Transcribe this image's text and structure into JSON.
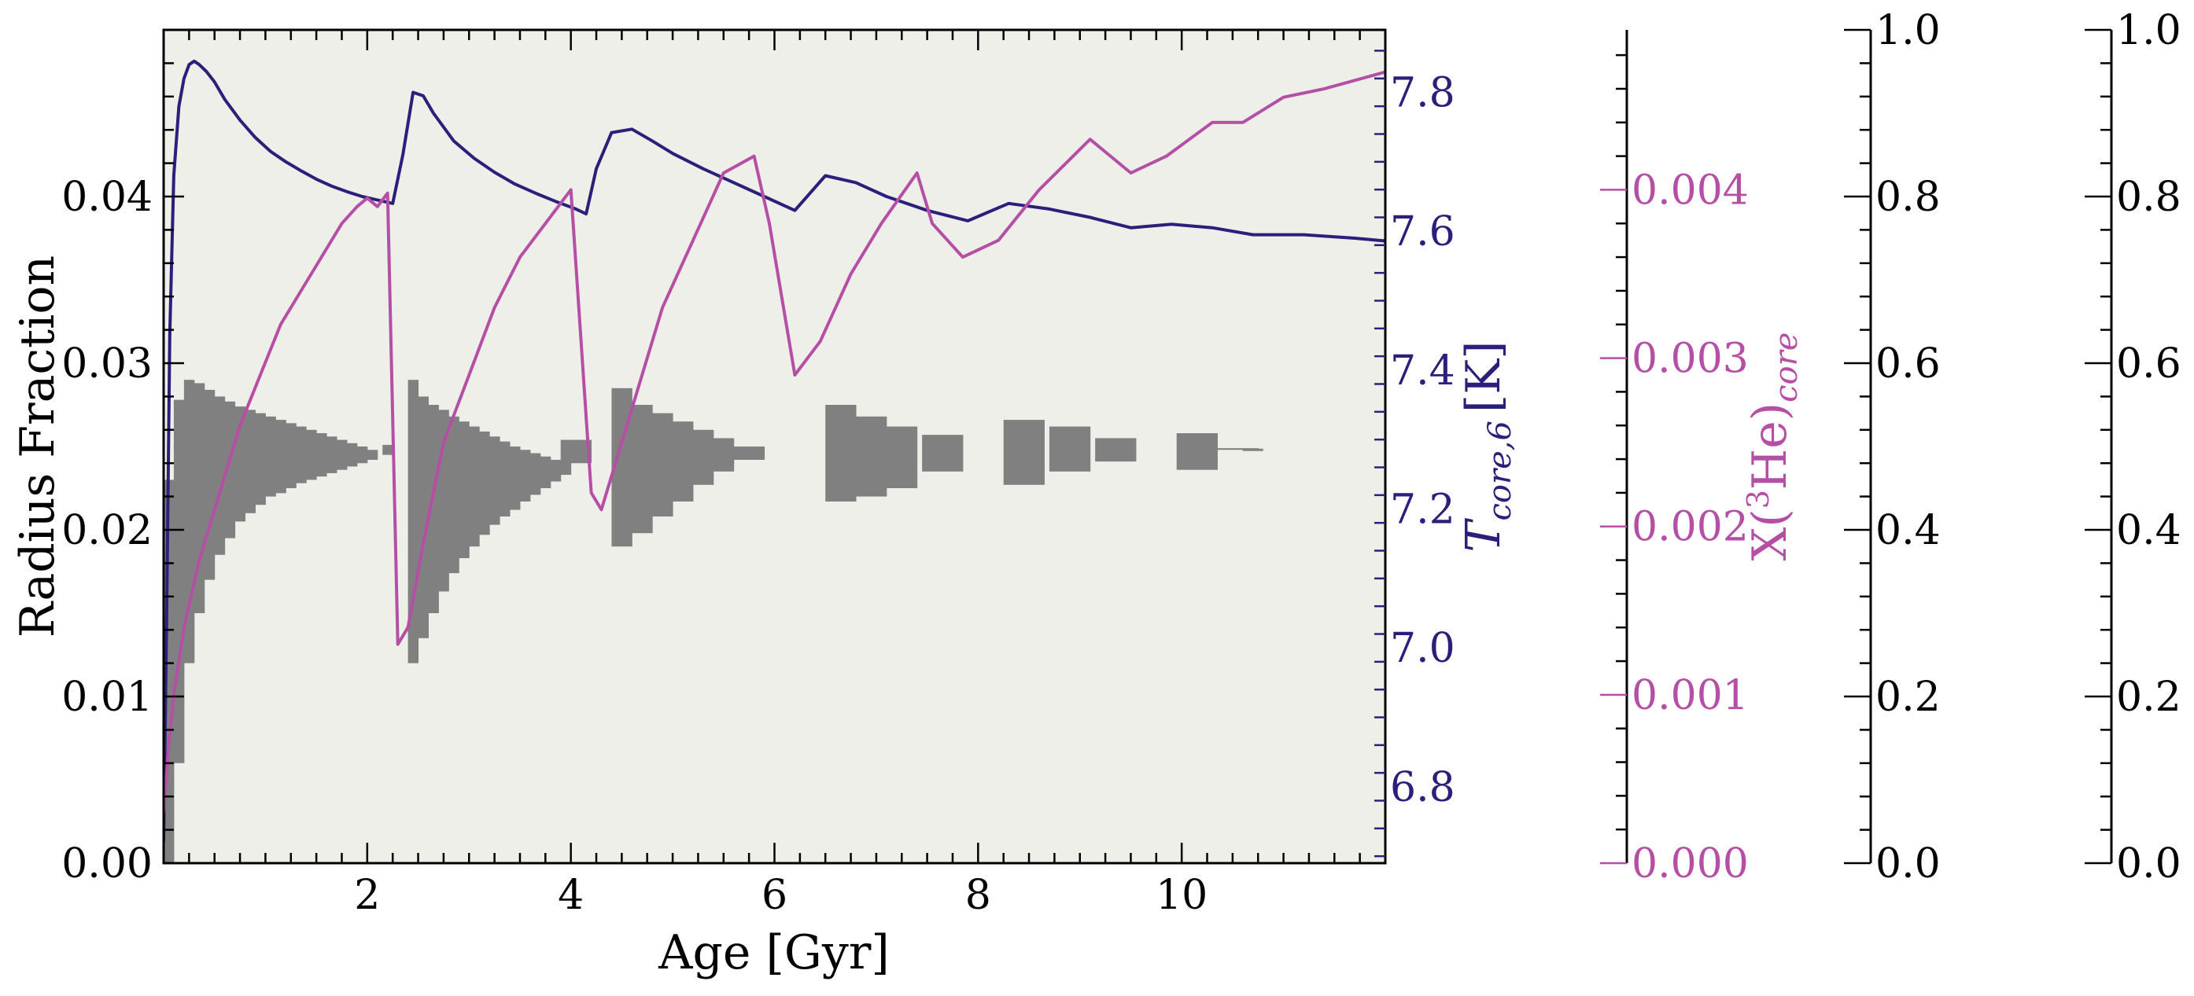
{
  "chart_data": {
    "type": "line",
    "xlabel": "Age [Gyr]",
    "ylabel": "Radius Fraction",
    "xlim": [
      0,
      12
    ],
    "ylim": [
      0,
      0.05
    ],
    "x_ticks": [
      "2",
      "4",
      "6",
      "8",
      "10"
    ],
    "y_ticks": [
      "0.00",
      "0.01",
      "0.02",
      "0.03",
      "0.04"
    ],
    "grid": false,
    "plot_background": "#efefea",
    "convective_core": {
      "color": "#808080",
      "x": [
        0.05,
        0.15,
        0.25,
        0.35,
        0.45,
        0.55,
        0.65,
        0.75,
        0.85,
        0.95,
        1.05,
        1.15,
        1.25,
        1.35,
        1.45,
        1.55,
        1.65,
        1.75,
        1.85,
        1.95,
        2.05,
        2.2,
        2.45,
        2.55,
        2.65,
        2.75,
        2.85,
        2.95,
        3.05,
        3.15,
        3.25,
        3.35,
        3.45,
        3.55,
        3.65,
        3.75,
        3.85,
        3.95,
        4.1,
        4.5,
        4.7,
        4.9,
        5.1,
        5.3,
        5.5,
        5.75,
        6.65,
        6.95,
        7.25,
        7.65,
        8.45,
        8.9,
        9.35,
        10.15,
        10.55
      ],
      "lower": [
        0.0,
        0.006,
        0.012,
        0.015,
        0.017,
        0.0185,
        0.0195,
        0.0205,
        0.021,
        0.0215,
        0.022,
        0.0222,
        0.0225,
        0.0228,
        0.023,
        0.0232,
        0.0234,
        0.0236,
        0.0238,
        0.024,
        0.0242,
        0.0245,
        0.012,
        0.0135,
        0.015,
        0.0163,
        0.0174,
        0.0183,
        0.019,
        0.0197,
        0.0203,
        0.0208,
        0.0212,
        0.0217,
        0.0221,
        0.0225,
        0.0229,
        0.0233,
        0.024,
        0.019,
        0.0198,
        0.0208,
        0.0217,
        0.0227,
        0.0235,
        0.0242,
        0.0217,
        0.022,
        0.0225,
        0.0235,
        0.0227,
        0.0235,
        0.0241,
        0.0236,
        0.0248
      ],
      "upper": [
        0.023,
        0.0278,
        0.029,
        0.0288,
        0.0284,
        0.028,
        0.0277,
        0.0274,
        0.0272,
        0.027,
        0.0268,
        0.0266,
        0.0264,
        0.0262,
        0.026,
        0.0258,
        0.0256,
        0.0254,
        0.0252,
        0.025,
        0.0248,
        0.0251,
        0.029,
        0.028,
        0.0275,
        0.0272,
        0.0268,
        0.0265,
        0.0262,
        0.0259,
        0.0256,
        0.0253,
        0.025,
        0.0248,
        0.0246,
        0.0244,
        0.0242,
        0.0254,
        0.0254,
        0.0285,
        0.0275,
        0.027,
        0.0265,
        0.026,
        0.0255,
        0.025,
        0.0275,
        0.0268,
        0.0262,
        0.0257,
        0.0266,
        0.0262,
        0.0255,
        0.0258,
        0.0249
      ],
      "width": [
        0.1,
        0.1,
        0.1,
        0.1,
        0.1,
        0.1,
        0.1,
        0.1,
        0.1,
        0.1,
        0.1,
        0.1,
        0.1,
        0.1,
        0.1,
        0.1,
        0.1,
        0.1,
        0.1,
        0.1,
        0.1,
        0.1,
        0.1,
        0.1,
        0.1,
        0.1,
        0.1,
        0.1,
        0.1,
        0.1,
        0.1,
        0.1,
        0.1,
        0.1,
        0.1,
        0.1,
        0.1,
        0.1,
        0.2,
        0.2,
        0.2,
        0.2,
        0.2,
        0.2,
        0.2,
        0.3,
        0.3,
        0.3,
        0.3,
        0.4,
        0.4,
        0.4,
        0.4,
        0.4,
        0.4
      ]
    },
    "right_axes": [
      {
        "label": "T",
        "label_subscript": "core,6",
        "label_unit": "[K]",
        "color": "#2a1f7a",
        "ylim": [
          6.69,
          7.89
        ],
        "ticks": [
          "6.8",
          "7.0",
          "7.2",
          "7.4",
          "7.6",
          "7.8"
        ]
      },
      {
        "label": "X(",
        "label_superscript": "3",
        "label_element": "He)",
        "label_subscript": "core",
        "color": "#b54fa5",
        "ylim": [
          0,
          0.00495
        ],
        "ticks": [
          "0.000",
          "0.001",
          "0.002",
          "0.003",
          "0.004"
        ]
      },
      {
        "label": "",
        "color": "#000000",
        "ylim": [
          0,
          1
        ],
        "ticks": [
          "0.0",
          "0.2",
          "0.4",
          "0.6",
          "0.8",
          "1.0"
        ]
      },
      {
        "label": "",
        "color": "#000000",
        "ylim": [
          0,
          1
        ],
        "ticks": [
          "0.0",
          "0.2",
          "0.4",
          "0.6",
          "0.8",
          "1.0"
        ]
      }
    ],
    "series": [
      {
        "axis": 0,
        "color": "#2a1f7a",
        "x": [
          0.0,
          0.03,
          0.06,
          0.1,
          0.15,
          0.2,
          0.25,
          0.3,
          0.35,
          0.42,
          0.5,
          0.6,
          0.75,
          0.9,
          1.05,
          1.2,
          1.35,
          1.5,
          1.65,
          1.8,
          1.95,
          2.1,
          2.25,
          2.35,
          2.45,
          2.55,
          2.65,
          2.85,
          3.05,
          3.25,
          3.45,
          3.65,
          3.85,
          4.05,
          4.15,
          4.25,
          4.4,
          4.6,
          4.8,
          5.0,
          5.3,
          5.6,
          5.9,
          6.2,
          6.5,
          6.8,
          7.1,
          7.5,
          7.9,
          8.3,
          8.7,
          9.1,
          9.5,
          9.9,
          10.3,
          10.7,
          11.2,
          11.7,
          12.0
        ],
        "y": [
          6.72,
          7.05,
          7.45,
          7.68,
          7.78,
          7.82,
          7.84,
          7.845,
          7.84,
          7.83,
          7.815,
          7.79,
          7.76,
          7.735,
          7.715,
          7.7,
          7.687,
          7.675,
          7.665,
          7.657,
          7.65,
          7.645,
          7.64,
          7.71,
          7.8,
          7.795,
          7.77,
          7.73,
          7.705,
          7.685,
          7.668,
          7.655,
          7.643,
          7.632,
          7.625,
          7.69,
          7.742,
          7.747,
          7.73,
          7.712,
          7.69,
          7.67,
          7.65,
          7.63,
          7.68,
          7.67,
          7.65,
          7.63,
          7.615,
          7.64,
          7.632,
          7.62,
          7.605,
          7.61,
          7.605,
          7.595,
          7.595,
          7.59,
          7.586
        ]
      },
      {
        "axis": 1,
        "color": "#b54fa5",
        "x": [
          0.0,
          0.05,
          0.1,
          0.2,
          0.35,
          0.55,
          0.75,
          0.95,
          1.15,
          1.35,
          1.55,
          1.75,
          1.9,
          2.0,
          2.1,
          2.2,
          2.3,
          2.4,
          2.55,
          2.75,
          3.0,
          3.25,
          3.5,
          3.75,
          4.0,
          4.2,
          4.3,
          4.4,
          4.6,
          4.9,
          5.2,
          5.5,
          5.8,
          5.95,
          6.2,
          6.45,
          6.75,
          7.05,
          7.4,
          7.55,
          7.85,
          8.2,
          8.6,
          9.1,
          9.5,
          9.85,
          10.3,
          10.6,
          11.0,
          11.4,
          12.0
        ],
        "y": [
          0.0003,
          0.0007,
          0.001,
          0.0014,
          0.0018,
          0.0022,
          0.0026,
          0.0029,
          0.0032,
          0.0034,
          0.0036,
          0.0038,
          0.0039,
          0.00395,
          0.0039,
          0.00398,
          0.0013,
          0.0014,
          0.0019,
          0.0025,
          0.0029,
          0.0033,
          0.0036,
          0.0038,
          0.004,
          0.0022,
          0.0021,
          0.0023,
          0.0027,
          0.0033,
          0.0037,
          0.0041,
          0.0042,
          0.0038,
          0.0029,
          0.0031,
          0.0035,
          0.0038,
          0.0041,
          0.0038,
          0.0036,
          0.0037,
          0.004,
          0.0043,
          0.0041,
          0.0042,
          0.0044,
          0.0044,
          0.00455,
          0.0046,
          0.0047
        ]
      }
    ]
  }
}
